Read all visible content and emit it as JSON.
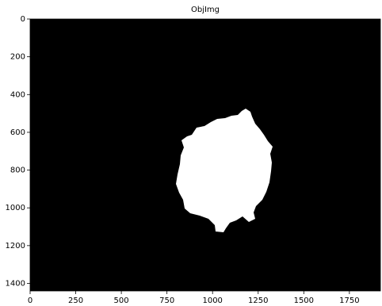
{
  "chart_data": {
    "type": "image",
    "title": "ObjImg",
    "xlim": [
      0,
      1920
    ],
    "ylim": [
      1440,
      0
    ],
    "xticks": [
      0,
      250,
      500,
      750,
      1000,
      1250,
      1500,
      1750
    ],
    "yticks": [
      0,
      200,
      400,
      600,
      800,
      1000,
      1200,
      1400
    ]
  }
}
